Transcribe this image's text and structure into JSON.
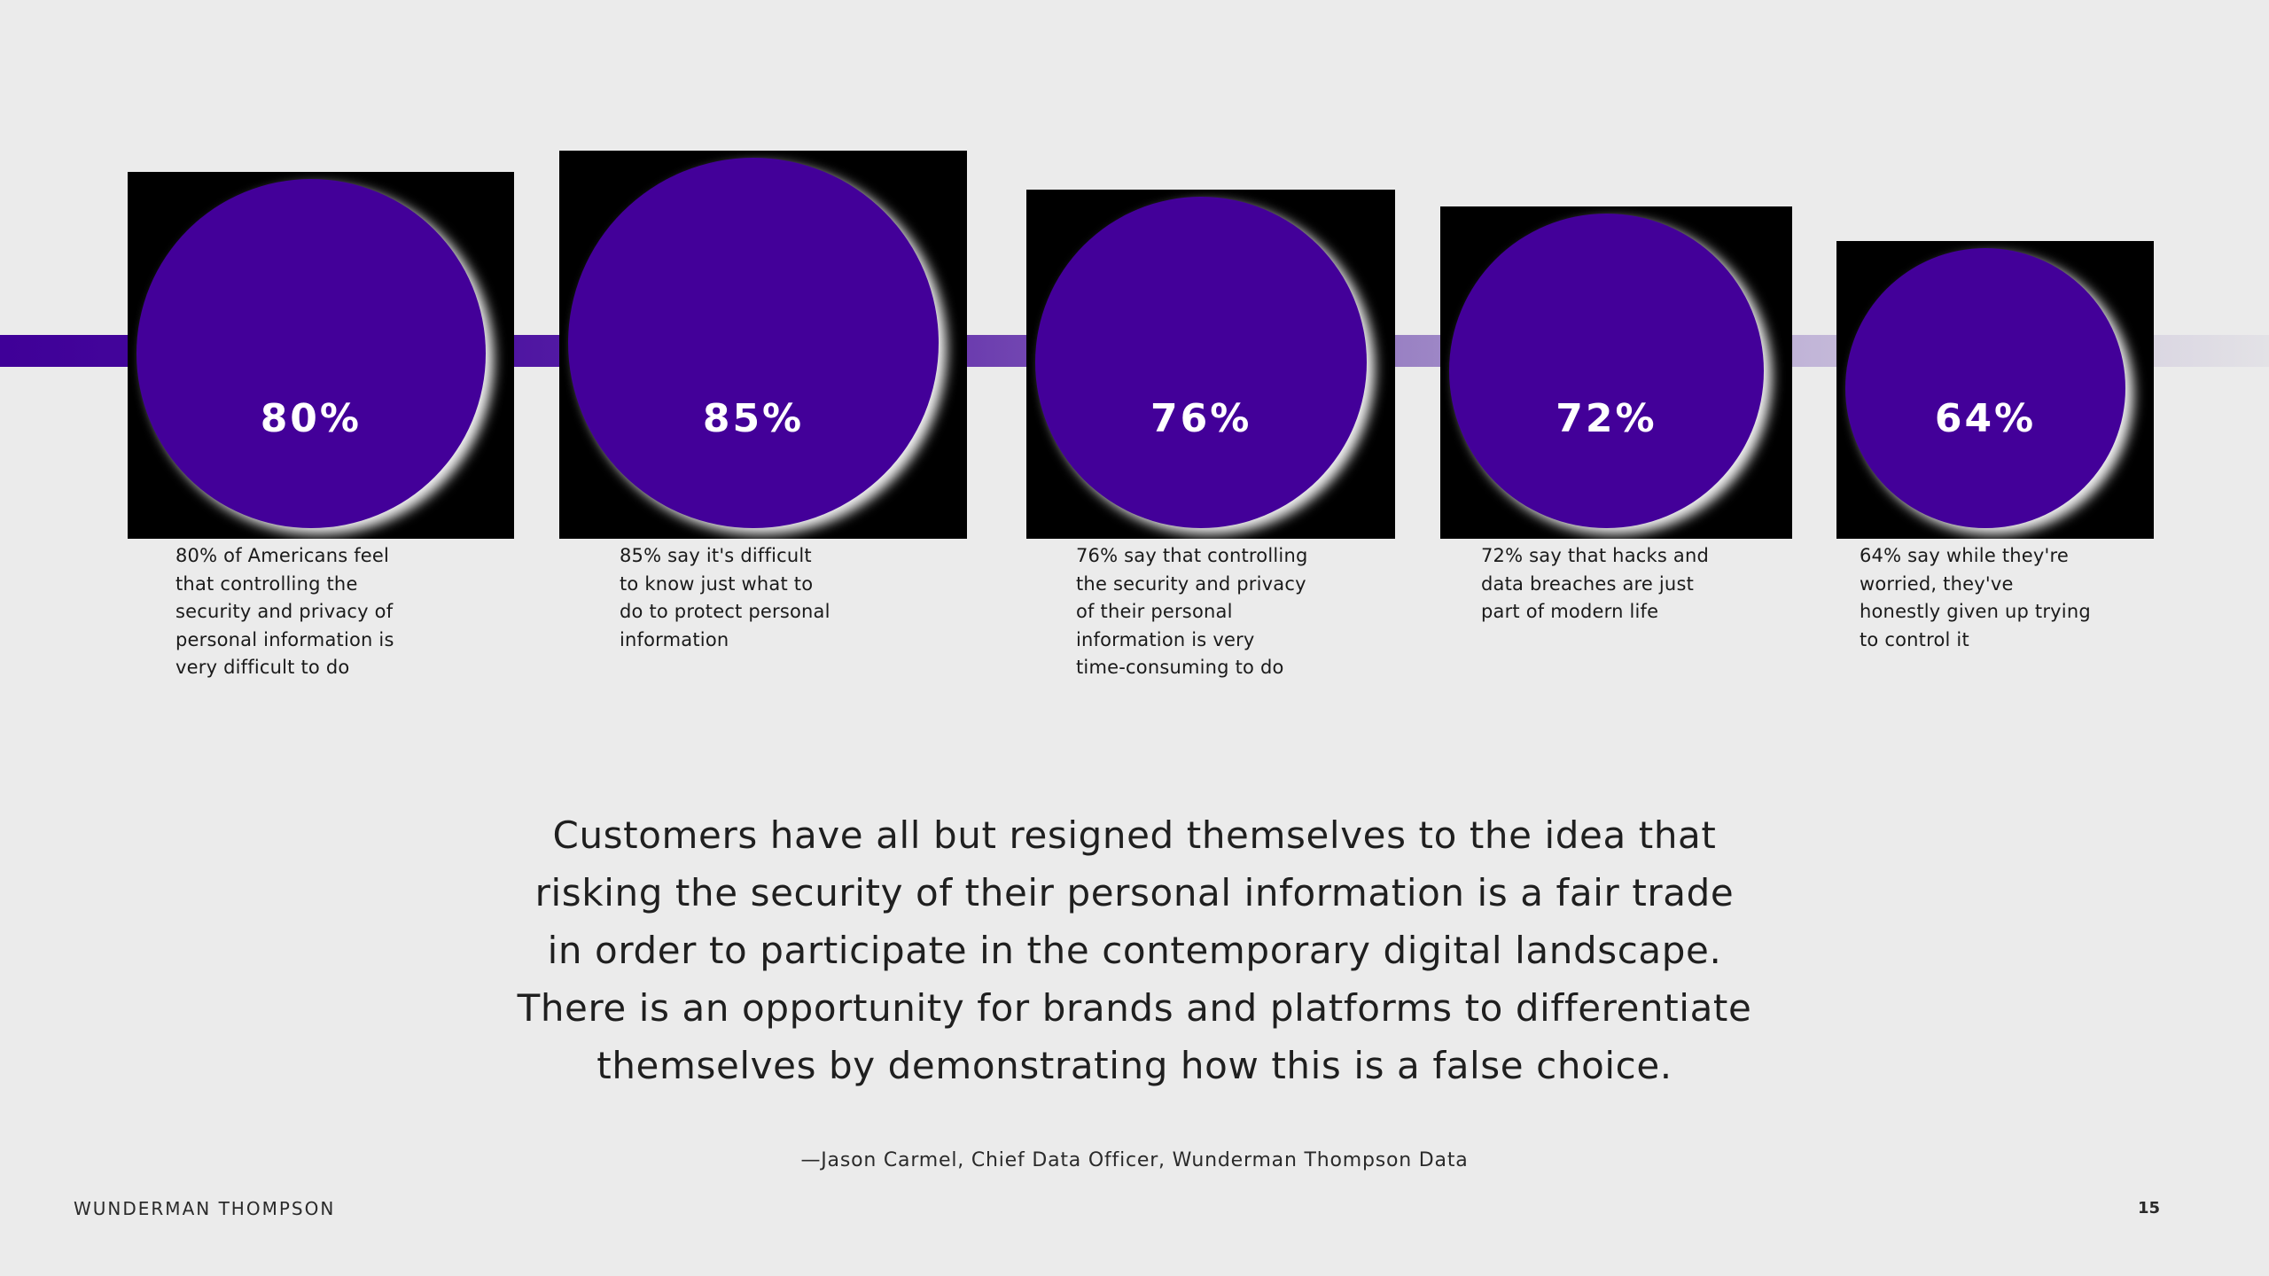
{
  "chart_data": {
    "type": "bar",
    "categories": [
      "80% of Americans feel that controlling the security and privacy of personal information is very difficult to do",
      "85% say it's difficult to know just what to do to protect personal information",
      "76% say that controlling the security and privacy of their personal information is very time-consuming to do",
      "72% say that hacks and data breaches are just part of modern life",
      "64% say while they're worried, they've honestly given up trying to control it"
    ],
    "values": [
      80,
      85,
      76,
      72,
      64
    ],
    "value_labels": [
      "80%",
      "85%",
      "76%",
      "72%",
      "64%"
    ],
    "captions": [
      "80% of Americans feel\nthat controlling the\nsecurity and privacy of\npersonal information is\nvery difficult to do",
      "85% say it's difficult\nto know just what to\ndo to protect personal\ninformation",
      "76% say that controlling\nthe security and privacy\nof their personal\ninformation is very\ntime-consuming to do",
      "72% say that hacks and\ndata breaches are just\npart of modern life",
      "64% say while they're\nworried, they've\nhonestly given up trying\nto control it"
    ],
    "title": "",
    "xlabel": "",
    "ylabel": "",
    "ylim": [
      0,
      100
    ],
    "grid": false,
    "legend": "none",
    "colors": {
      "circle": "#430099",
      "card": "#000000",
      "value_text": "#ffffff",
      "timeline_start": "#3f0098",
      "timeline_end": "#e3e2e6"
    }
  },
  "quote": {
    "text": "Customers have all but resigned themselves to the idea that\nrisking the security of their personal information is a fair trade\nin order to participate in the contemporary digital landscape.\nThere is an opportunity for brands and platforms to differentiate\nthemselves by demonstrating how this is a false choice.",
    "attribution": "—Jason Carmel, Chief Data Officer, Wunderman Thompson Data"
  },
  "footer": {
    "brand": "WUNDERMAN THOMPSON",
    "page_number": "15"
  }
}
